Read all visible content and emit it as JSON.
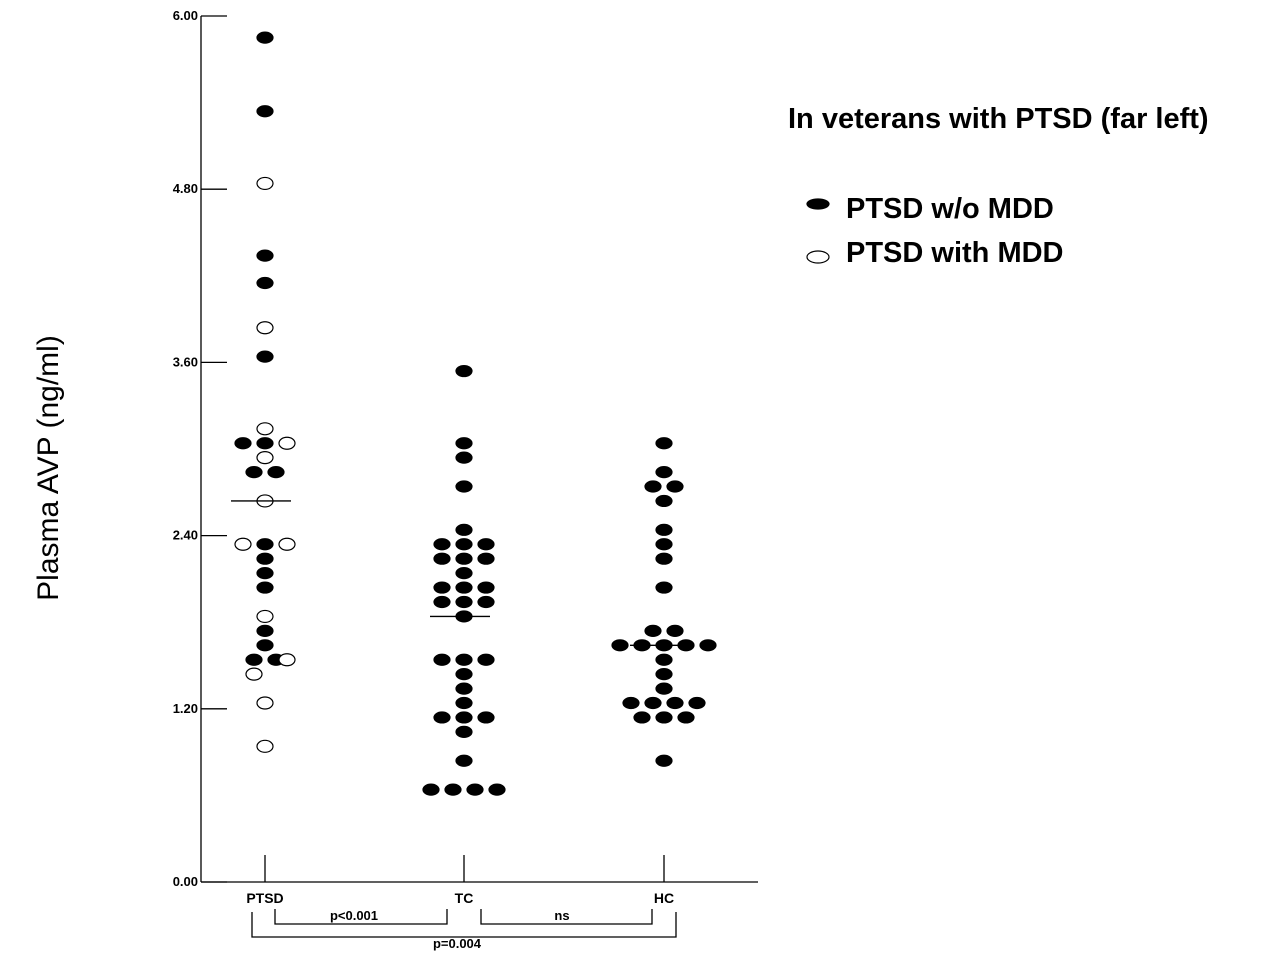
{
  "chart_data": {
    "type": "scatter",
    "ylabel": "Plasma AVP (ng/ml)",
    "ylim": [
      0,
      6.0
    ],
    "yticks": [
      "0.00",
      "1.20",
      "2.40",
      "3.60",
      "4.80",
      "6.00"
    ],
    "categories": [
      "PTSD",
      "TC",
      "HC"
    ],
    "legend": {
      "title": "In veterans with PTSD (far left)",
      "placement": "right",
      "entries": [
        {
          "label": "PTSD w/o MDD",
          "fill": "#000000"
        },
        {
          "label": "PTSD with MDD",
          "fill": "#ffffff"
        }
      ]
    },
    "series": [
      {
        "name": "PTSD w/o MDD",
        "points": [
          {
            "x": "PTSD",
            "offset": 0,
            "y": 5.85
          },
          {
            "x": "PTSD",
            "offset": 0,
            "y": 5.34
          },
          {
            "x": "PTSD",
            "offset": 0,
            "y": 4.34
          },
          {
            "x": "PTSD",
            "offset": 0,
            "y": 4.15
          },
          {
            "x": "PTSD",
            "offset": 0,
            "y": 3.64
          },
          {
            "x": "PTSD",
            "offset": -1,
            "y": 3.04
          },
          {
            "x": "PTSD",
            "offset": 0,
            "y": 3.04
          },
          {
            "x": "PTSD",
            "offset": -0.5,
            "y": 2.84
          },
          {
            "x": "PTSD",
            "offset": 0.5,
            "y": 2.84
          },
          {
            "x": "PTSD",
            "offset": 0,
            "y": 2.34
          },
          {
            "x": "PTSD",
            "offset": 0,
            "y": 2.24
          },
          {
            "x": "PTSD",
            "offset": 0,
            "y": 2.14
          },
          {
            "x": "PTSD",
            "offset": 0,
            "y": 2.04
          },
          {
            "x": "PTSD",
            "offset": 0,
            "y": 1.74
          },
          {
            "x": "PTSD",
            "offset": 0,
            "y": 1.64
          },
          {
            "x": "PTSD",
            "offset": -0.5,
            "y": 1.54
          },
          {
            "x": "PTSD",
            "offset": 0.5,
            "y": 1.54
          },
          {
            "x": "TC",
            "offset": 0,
            "y": 3.54
          },
          {
            "x": "TC",
            "offset": 0,
            "y": 3.04
          },
          {
            "x": "TC",
            "offset": 0,
            "y": 2.94
          },
          {
            "x": "TC",
            "offset": 0,
            "y": 2.74
          },
          {
            "x": "TC",
            "offset": 0,
            "y": 2.44
          },
          {
            "x": "TC",
            "offset": -1,
            "y": 2.34
          },
          {
            "x": "TC",
            "offset": 0,
            "y": 2.34
          },
          {
            "x": "TC",
            "offset": 1,
            "y": 2.34
          },
          {
            "x": "TC",
            "offset": -1,
            "y": 2.24
          },
          {
            "x": "TC",
            "offset": 0,
            "y": 2.24
          },
          {
            "x": "TC",
            "offset": 1,
            "y": 2.24
          },
          {
            "x": "TC",
            "offset": 0,
            "y": 2.14
          },
          {
            "x": "TC",
            "offset": -1,
            "y": 2.04
          },
          {
            "x": "TC",
            "offset": 0,
            "y": 2.04
          },
          {
            "x": "TC",
            "offset": 1,
            "y": 2.04
          },
          {
            "x": "TC",
            "offset": -1,
            "y": 1.94
          },
          {
            "x": "TC",
            "offset": 0,
            "y": 1.94
          },
          {
            "x": "TC",
            "offset": 1,
            "y": 1.94
          },
          {
            "x": "TC",
            "offset": 0,
            "y": 1.84
          },
          {
            "x": "TC",
            "offset": -1,
            "y": 1.54
          },
          {
            "x": "TC",
            "offset": 0,
            "y": 1.54
          },
          {
            "x": "TC",
            "offset": 1,
            "y": 1.54
          },
          {
            "x": "TC",
            "offset": 0,
            "y": 1.44
          },
          {
            "x": "TC",
            "offset": 0,
            "y": 1.34
          },
          {
            "x": "TC",
            "offset": 0,
            "y": 1.24
          },
          {
            "x": "TC",
            "offset": -1,
            "y": 1.14
          },
          {
            "x": "TC",
            "offset": 0,
            "y": 1.14
          },
          {
            "x": "TC",
            "offset": 1,
            "y": 1.14
          },
          {
            "x": "TC",
            "offset": 0,
            "y": 1.04
          },
          {
            "x": "TC",
            "offset": 0,
            "y": 0.84
          },
          {
            "x": "TC",
            "offset": -1.5,
            "y": 0.64
          },
          {
            "x": "TC",
            "offset": -0.5,
            "y": 0.64
          },
          {
            "x": "TC",
            "offset": 0.5,
            "y": 0.64
          },
          {
            "x": "TC",
            "offset": 1.5,
            "y": 0.64
          },
          {
            "x": "HC",
            "offset": 0,
            "y": 3.04
          },
          {
            "x": "HC",
            "offset": 0,
            "y": 2.84
          },
          {
            "x": "HC",
            "offset": -0.5,
            "y": 2.74
          },
          {
            "x": "HC",
            "offset": 0.5,
            "y": 2.74
          },
          {
            "x": "HC",
            "offset": 0,
            "y": 2.64
          },
          {
            "x": "HC",
            "offset": 0,
            "y": 2.44
          },
          {
            "x": "HC",
            "offset": 0,
            "y": 2.34
          },
          {
            "x": "HC",
            "offset": 0,
            "y": 2.24
          },
          {
            "x": "HC",
            "offset": 0,
            "y": 2.04
          },
          {
            "x": "HC",
            "offset": -0.5,
            "y": 1.74
          },
          {
            "x": "HC",
            "offset": 0.5,
            "y": 1.74
          },
          {
            "x": "HC",
            "offset": -2,
            "y": 1.64
          },
          {
            "x": "HC",
            "offset": -1,
            "y": 1.64
          },
          {
            "x": "HC",
            "offset": 0,
            "y": 1.64
          },
          {
            "x": "HC",
            "offset": 1,
            "y": 1.64
          },
          {
            "x": "HC",
            "offset": 2,
            "y": 1.64
          },
          {
            "x": "HC",
            "offset": 0,
            "y": 1.54
          },
          {
            "x": "HC",
            "offset": 0,
            "y": 1.44
          },
          {
            "x": "HC",
            "offset": 0,
            "y": 1.34
          },
          {
            "x": "HC",
            "offset": -1.5,
            "y": 1.24
          },
          {
            "x": "HC",
            "offset": -0.5,
            "y": 1.24
          },
          {
            "x": "HC",
            "offset": 0.5,
            "y": 1.24
          },
          {
            "x": "HC",
            "offset": 1.5,
            "y": 1.24
          },
          {
            "x": "HC",
            "offset": -1,
            "y": 1.14
          },
          {
            "x": "HC",
            "offset": 0,
            "y": 1.14
          },
          {
            "x": "HC",
            "offset": 1,
            "y": 1.14
          },
          {
            "x": "HC",
            "offset": 0,
            "y": 0.84
          }
        ]
      },
      {
        "name": "PTSD with MDD",
        "points": [
          {
            "x": "PTSD",
            "offset": 0,
            "y": 4.84
          },
          {
            "x": "PTSD",
            "offset": 0,
            "y": 3.84
          },
          {
            "x": "PTSD",
            "offset": 0,
            "y": 3.14
          },
          {
            "x": "PTSD",
            "offset": 1,
            "y": 3.04
          },
          {
            "x": "PTSD",
            "offset": 0,
            "y": 2.94
          },
          {
            "x": "PTSD",
            "offset": 0,
            "y": 2.64
          },
          {
            "x": "PTSD",
            "offset": -1,
            "y": 2.34
          },
          {
            "x": "PTSD",
            "offset": 1,
            "y": 2.34
          },
          {
            "x": "PTSD",
            "offset": 0,
            "y": 1.84
          },
          {
            "x": "PTSD",
            "offset": 1,
            "y": 1.54
          },
          {
            "x": "PTSD",
            "offset": -0.5,
            "y": 1.44
          },
          {
            "x": "PTSD",
            "offset": 0,
            "y": 1.24
          },
          {
            "x": "PTSD",
            "offset": 0,
            "y": 0.94
          }
        ]
      }
    ],
    "medians": [
      {
        "x": "PTSD",
        "y": 2.64
      },
      {
        "x": "TC",
        "y": 1.84
      },
      {
        "x": "HC",
        "y": 1.64
      }
    ],
    "annotations": [
      {
        "from": "PTSD",
        "to": "TC",
        "text": "p<0.001"
      },
      {
        "from": "TC",
        "to": "HC",
        "text": "ns"
      },
      {
        "from": "PTSD",
        "to": "HC",
        "text": "p=0.004"
      }
    ]
  }
}
